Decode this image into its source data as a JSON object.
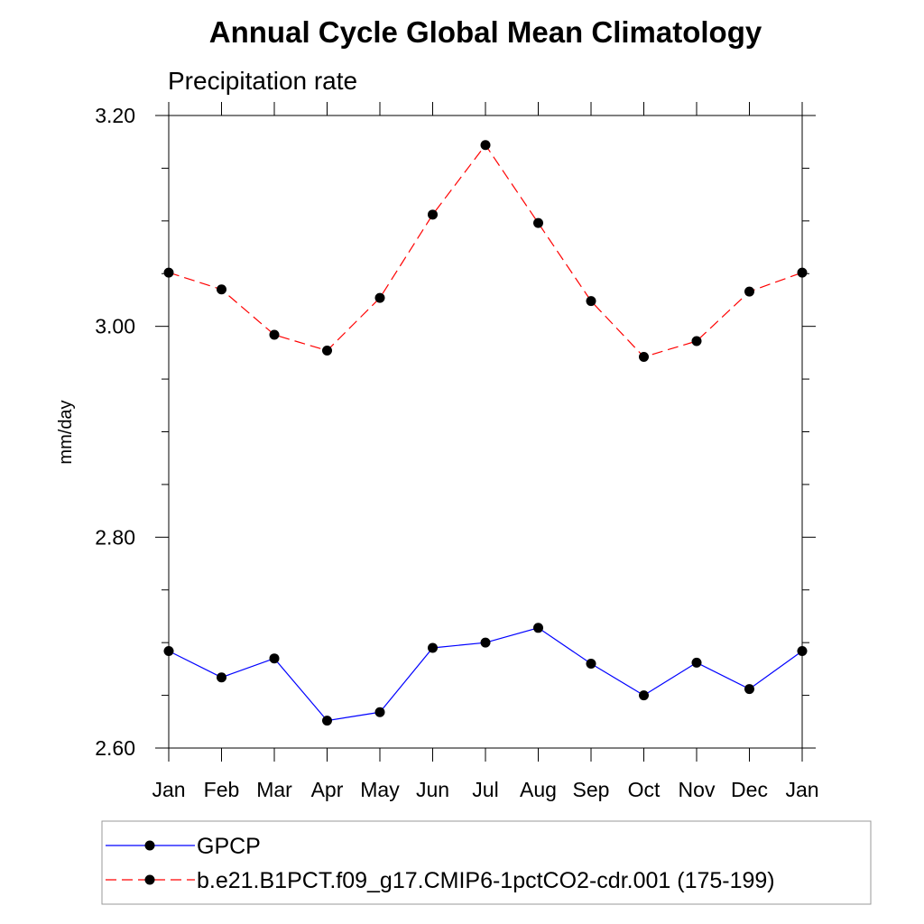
{
  "chart_data": {
    "type": "line",
    "title": "Annual Cycle Global Mean Climatology",
    "subtitle": "Precipitation rate",
    "xlabel": "",
    "ylabel": "mm/day",
    "categories": [
      "Jan",
      "Feb",
      "Mar",
      "Apr",
      "May",
      "Jun",
      "Jul",
      "Aug",
      "Sep",
      "Oct",
      "Nov",
      "Dec",
      "Jan"
    ],
    "ylim": [
      2.6,
      3.2
    ],
    "yticks": [
      "2.60",
      "2.80",
      "3.00",
      "3.20"
    ],
    "grid": false,
    "legend_position": "bottom",
    "series": [
      {
        "name": "GPCP",
        "color": "#0000ff",
        "line_style": "solid",
        "marker": "filled-circle",
        "values": [
          2.692,
          2.667,
          2.685,
          2.626,
          2.634,
          2.695,
          2.7,
          2.714,
          2.68,
          2.65,
          2.681,
          2.656,
          2.692
        ]
      },
      {
        "name": "b.e21.B1PCT.f09_g17.CMIP6-1pctCO2-cdr.001 (175-199)",
        "color": "#ff0000",
        "line_style": "dashed",
        "marker": "filled-circle",
        "values": [
          3.051,
          3.035,
          2.992,
          2.977,
          3.027,
          3.106,
          3.172,
          3.098,
          3.024,
          2.971,
          2.986,
          3.033,
          3.051
        ]
      }
    ]
  }
}
